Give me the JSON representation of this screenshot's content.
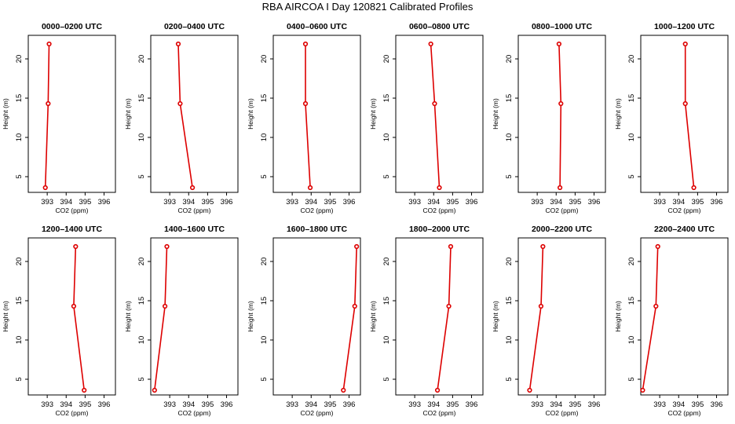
{
  "title": "RBA AIRCOA I  Day 120821  Calibrated Profiles",
  "colors": {
    "line": "#dd0000",
    "point_fill": "#ffffff",
    "frame": "#000000"
  },
  "chart_data": [
    {
      "type": "line",
      "title": "0000–0200 UTC",
      "xlabel": "CO2 (ppm)",
      "ylabel": "Height (m)",
      "xlim": [
        392,
        396.6
      ],
      "ylim": [
        3,
        23
      ],
      "xticks": [
        393,
        394,
        395,
        396
      ],
      "yticks": [
        5,
        10,
        15,
        20
      ],
      "series": [
        {
          "x": [
            392.9,
            393.05,
            393.1
          ],
          "y": [
            3.6,
            14.3,
            21.9
          ]
        }
      ]
    },
    {
      "type": "line",
      "title": "0200–0400 UTC",
      "xlabel": "CO2 (ppm)",
      "ylabel": "Height (m)",
      "xlim": [
        392,
        396.6
      ],
      "ylim": [
        3,
        23
      ],
      "xticks": [
        393,
        394,
        395,
        396
      ],
      "yticks": [
        5,
        10,
        15,
        20
      ],
      "series": [
        {
          "x": [
            394.2,
            393.55,
            393.45
          ],
          "y": [
            3.6,
            14.3,
            21.9
          ]
        }
      ]
    },
    {
      "type": "line",
      "title": "0400–0600 UTC",
      "xlabel": "CO2 (ppm)",
      "ylabel": "Height (m)",
      "xlim": [
        392,
        396.6
      ],
      "ylim": [
        3,
        23
      ],
      "xticks": [
        393,
        394,
        395,
        396
      ],
      "yticks": [
        5,
        10,
        15,
        20
      ],
      "series": [
        {
          "x": [
            393.95,
            393.7,
            393.7
          ],
          "y": [
            3.6,
            14.3,
            21.9
          ]
        }
      ]
    },
    {
      "type": "line",
      "title": "0600–0800 UTC",
      "xlabel": "CO2 (ppm)",
      "ylabel": "Height (m)",
      "xlim": [
        392,
        396.6
      ],
      "ylim": [
        3,
        23
      ],
      "xticks": [
        393,
        394,
        395,
        396
      ],
      "yticks": [
        5,
        10,
        15,
        20
      ],
      "series": [
        {
          "x": [
            394.3,
            394.05,
            393.85
          ],
          "y": [
            3.6,
            14.3,
            21.9
          ]
        }
      ]
    },
    {
      "type": "line",
      "title": "0800–1000 UTC",
      "xlabel": "CO2 (ppm)",
      "ylabel": "Height (m)",
      "xlim": [
        392,
        396.6
      ],
      "ylim": [
        3,
        23
      ],
      "xticks": [
        393,
        394,
        395,
        396
      ],
      "yticks": [
        5,
        10,
        15,
        20
      ],
      "series": [
        {
          "x": [
            394.2,
            394.25,
            394.15
          ],
          "y": [
            3.6,
            14.3,
            21.9
          ]
        }
      ]
    },
    {
      "type": "line",
      "title": "1000–1200 UTC",
      "xlabel": "CO2 (ppm)",
      "ylabel": "Height (m)",
      "xlim": [
        392,
        396.6
      ],
      "ylim": [
        3,
        23
      ],
      "xticks": [
        393,
        394,
        395,
        396
      ],
      "yticks": [
        5,
        10,
        15,
        20
      ],
      "series": [
        {
          "x": [
            394.8,
            394.35,
            394.35
          ],
          "y": [
            3.6,
            14.3,
            21.9
          ]
        }
      ]
    },
    {
      "type": "line",
      "title": "1200–1400 UTC",
      "xlabel": "CO2 (ppm)",
      "ylabel": "Height (m)",
      "xlim": [
        392,
        396.6
      ],
      "ylim": [
        3,
        23
      ],
      "xticks": [
        393,
        394,
        395,
        396
      ],
      "yticks": [
        5,
        10,
        15,
        20
      ],
      "series": [
        {
          "x": [
            394.95,
            394.4,
            394.5
          ],
          "y": [
            3.6,
            14.3,
            21.9
          ]
        }
      ]
    },
    {
      "type": "line",
      "title": "1400–1600 UTC",
      "xlabel": "CO2 (ppm)",
      "ylabel": "Height (m)",
      "xlim": [
        392,
        396.6
      ],
      "ylim": [
        3,
        23
      ],
      "xticks": [
        393,
        394,
        395,
        396
      ],
      "yticks": [
        5,
        10,
        15,
        20
      ],
      "series": [
        {
          "x": [
            392.2,
            392.75,
            392.85
          ],
          "y": [
            3.6,
            14.3,
            21.9
          ]
        }
      ]
    },
    {
      "type": "line",
      "title": "1600–1800 UTC",
      "xlabel": "CO2 (ppm)",
      "ylabel": "Height (m)",
      "xlim": [
        392,
        396.6
      ],
      "ylim": [
        3,
        23
      ],
      "xticks": [
        393,
        394,
        395,
        396
      ],
      "yticks": [
        5,
        10,
        15,
        20
      ],
      "series": [
        {
          "x": [
            395.7,
            396.3,
            396.4
          ],
          "y": [
            3.6,
            14.3,
            21.9
          ]
        }
      ]
    },
    {
      "type": "line",
      "title": "1800–2000 UTC",
      "xlabel": "CO2 (ppm)",
      "ylabel": "Height (m)",
      "xlim": [
        392,
        396.6
      ],
      "ylim": [
        3,
        23
      ],
      "xticks": [
        393,
        394,
        395,
        396
      ],
      "yticks": [
        5,
        10,
        15,
        20
      ],
      "series": [
        {
          "x": [
            394.2,
            394.8,
            394.9
          ],
          "y": [
            3.6,
            14.3,
            21.9
          ]
        }
      ]
    },
    {
      "type": "line",
      "title": "2000–2200 UTC",
      "xlabel": "CO2 (ppm)",
      "ylabel": "Height (m)",
      "xlim": [
        392,
        396.6
      ],
      "ylim": [
        3,
        23
      ],
      "xticks": [
        393,
        394,
        395,
        396
      ],
      "yticks": [
        5,
        10,
        15,
        20
      ],
      "series": [
        {
          "x": [
            392.6,
            393.2,
            393.3
          ],
          "y": [
            3.6,
            14.3,
            21.9
          ]
        }
      ]
    },
    {
      "type": "line",
      "title": "2200–2400 UTC",
      "xlabel": "CO2 (ppm)",
      "ylabel": "Height (m)",
      "xlim": [
        392,
        396.6
      ],
      "ylim": [
        3,
        23
      ],
      "xticks": [
        393,
        394,
        395,
        396
      ],
      "yticks": [
        5,
        10,
        15,
        20
      ],
      "series": [
        {
          "x": [
            392.1,
            392.8,
            392.9
          ],
          "y": [
            3.6,
            14.3,
            21.9
          ]
        }
      ]
    }
  ]
}
